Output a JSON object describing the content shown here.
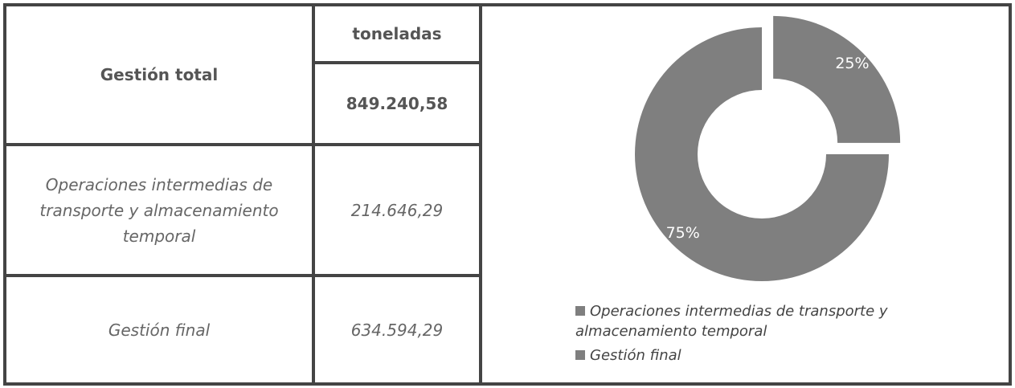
{
  "table": {
    "header": {
      "unit": "toneladas",
      "label": "Gestión total",
      "total": "849.240,58"
    },
    "rows": [
      [
        "Operaciones intermedias de transporte y almacenamiento temporal",
        "214.646,29"
      ],
      [
        "Gestión final",
        "634.594,29"
      ]
    ]
  },
  "chart_data": {
    "type": "donut",
    "categories": [
      "Operaciones intermedias de transporte y almacenamiento temporal",
      "Gestión final"
    ],
    "values": [
      25,
      75
    ],
    "value_labels": [
      "25%",
      "75%"
    ],
    "colors": [
      "#7f7f7f",
      "#7f7f7f"
    ],
    "legend": "bottom"
  }
}
